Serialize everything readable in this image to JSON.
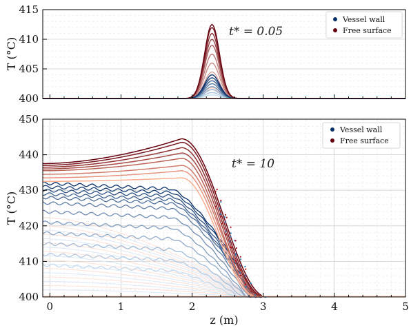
{
  "chart_data": [
    {
      "type": "line",
      "annotation": "t* = 0.05",
      "xlabel": "",
      "ylabel": "T (°C)",
      "xlim": [
        -0.1,
        5.0
      ],
      "ylim": [
        400,
        415
      ],
      "yticks": [
        "400",
        "405",
        "410",
        "415"
      ],
      "grid": true,
      "legend_position": "top-right",
      "legend": [
        "Vessel wall",
        "Free surface"
      ],
      "colors": {
        "vessel_wall": "#08306b",
        "free_surface": "#67000d"
      },
      "bump_center_z": 2.28,
      "bump_width_z": 0.22,
      "series_vessel_peaks": [
        404.0,
        403.5,
        403.0,
        402.5,
        402.0,
        401.5,
        401.0,
        400.6
      ],
      "series_free_peaks": [
        412.5,
        412.0,
        411.0,
        410.0,
        409.0,
        407.5,
        406.0,
        404.5,
        403.0,
        401.8
      ]
    },
    {
      "type": "line",
      "annotation": "t* = 10",
      "xlabel": "z (m)",
      "ylabel": "T (°C)",
      "xlim": [
        -0.1,
        5.0
      ],
      "ylim": [
        400,
        450
      ],
      "xticks": [
        "0",
        "1",
        "2",
        "3",
        "4",
        "5"
      ],
      "yticks": [
        "400",
        "410",
        "420",
        "430",
        "440",
        "450"
      ],
      "grid": true,
      "legend_position": "top-right",
      "legend": [
        "Vessel wall",
        "Free surface"
      ],
      "colors": {
        "vessel_wall": "#08306b",
        "free_surface": "#67000d"
      },
      "free_surface_series": [
        {
          "start": 437.5,
          "peak": 444.5,
          "peak_z": 1.85,
          "drop_z": 2.65
        },
        {
          "start": 437.0,
          "peak": 443.5,
          "peak_z": 1.85,
          "drop_z": 2.62
        },
        {
          "start": 436.5,
          "peak": 442.0,
          "peak_z": 1.85,
          "drop_z": 2.6
        },
        {
          "start": 436.0,
          "peak": 440.5,
          "peak_z": 1.85,
          "drop_z": 2.58
        },
        {
          "start": 435.5,
          "peak": 439.0,
          "peak_z": 1.85,
          "drop_z": 2.55
        },
        {
          "start": 434.5,
          "peak": 437.0,
          "peak_z": 1.85,
          "drop_z": 2.55
        },
        {
          "start": 433.5,
          "peak": 435.5,
          "peak_z": 1.85,
          "drop_z": 2.52
        },
        {
          "start": 432.5,
          "peak": 433.5,
          "peak_z": 1.85,
          "drop_z": 2.5
        }
      ],
      "vessel_wall_series": [
        {
          "start": 432.0,
          "end_z": 2.55
        },
        {
          "start": 431.0,
          "end_z": 2.55
        },
        {
          "start": 430.0,
          "end_z": 2.52
        },
        {
          "start": 429.0,
          "end_z": 2.5
        },
        {
          "start": 428.0,
          "end_z": 2.5
        },
        {
          "start": 426.5,
          "end_z": 2.48
        },
        {
          "start": 424.0,
          "end_z": 2.45
        },
        {
          "start": 421.0,
          "end_z": 2.42
        },
        {
          "start": 418.0,
          "end_z": 2.4
        },
        {
          "start": 415.0,
          "end_z": 2.35
        },
        {
          "start": 412.0,
          "end_z": 2.3
        },
        {
          "start": 409.0,
          "end_z": 2.25
        }
      ]
    }
  ]
}
